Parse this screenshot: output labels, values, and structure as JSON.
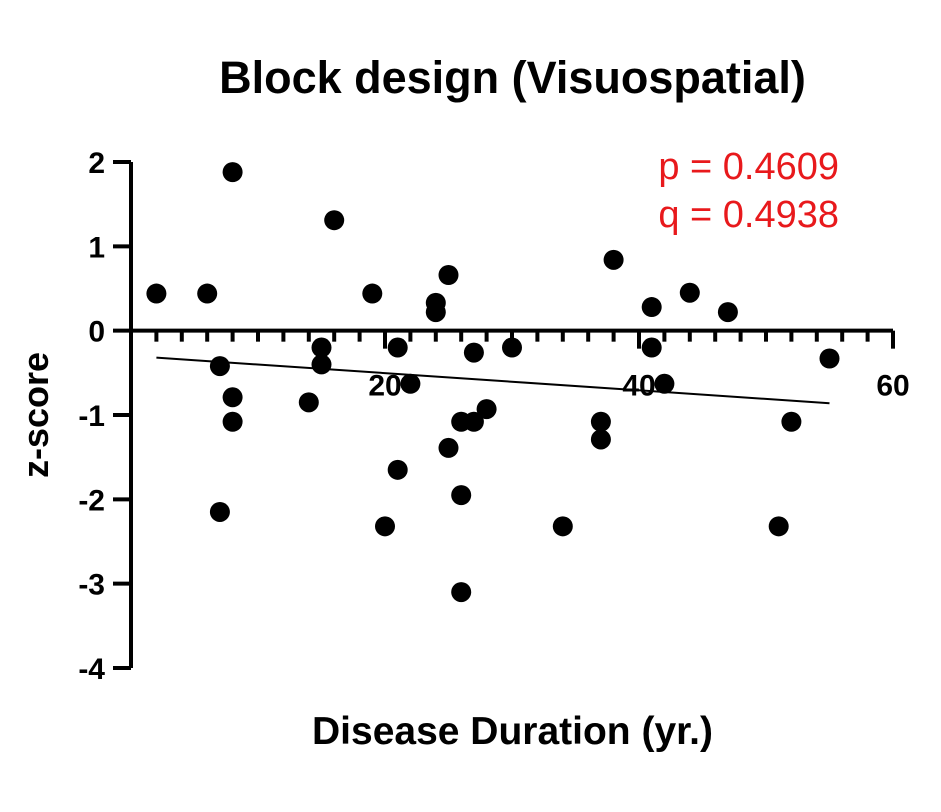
{
  "chart_data": {
    "type": "scatter",
    "title": "Block design (Visuospatial)",
    "xlabel": "Disease Duration (yr.)",
    "ylabel": "z-score",
    "xlim": [
      0,
      60
    ],
    "ylim": [
      -4,
      2
    ],
    "x_ticks": [
      20,
      40,
      60
    ],
    "y_ticks": [
      2,
      1,
      0,
      -1,
      -2,
      -3,
      -4
    ],
    "annotations": [
      "p = 0.4609",
      "q = 0.4938"
    ],
    "annotation_color": "#e8191c",
    "marker_color": "#000000",
    "grid": false,
    "trendline": {
      "x": [
        2,
        55
      ],
      "y": [
        -0.32,
        -0.86
      ]
    },
    "points": [
      {
        "x": 2,
        "y": 0.44
      },
      {
        "x": 6,
        "y": 0.44
      },
      {
        "x": 7,
        "y": -0.42
      },
      {
        "x": 7,
        "y": -2.15
      },
      {
        "x": 8,
        "y": 1.88
      },
      {
        "x": 8,
        "y": -0.79
      },
      {
        "x": 8,
        "y": -1.08
      },
      {
        "x": 15,
        "y": -0.2
      },
      {
        "x": 15,
        "y": -0.4
      },
      {
        "x": 14,
        "y": -0.85
      },
      {
        "x": 16,
        "y": 1.31
      },
      {
        "x": 19,
        "y": 0.44
      },
      {
        "x": 20,
        "y": -2.32
      },
      {
        "x": 21,
        "y": -0.2
      },
      {
        "x": 21,
        "y": -1.65
      },
      {
        "x": 22,
        "y": -0.63
      },
      {
        "x": 24,
        "y": 0.33
      },
      {
        "x": 24,
        "y": 0.22
      },
      {
        "x": 25,
        "y": 0.66
      },
      {
        "x": 25,
        "y": -1.39
      },
      {
        "x": 26,
        "y": -1.08
      },
      {
        "x": 26,
        "y": -1.95
      },
      {
        "x": 26,
        "y": -3.1
      },
      {
        "x": 27,
        "y": -0.26
      },
      {
        "x": 27,
        "y": -1.08
      },
      {
        "x": 28,
        "y": -0.93
      },
      {
        "x": 30,
        "y": -0.2
      },
      {
        "x": 34,
        "y": -2.32
      },
      {
        "x": 37,
        "y": -1.08
      },
      {
        "x": 37,
        "y": -1.29
      },
      {
        "x": 38,
        "y": 0.84
      },
      {
        "x": 41,
        "y": 0.28
      },
      {
        "x": 41,
        "y": -0.2
      },
      {
        "x": 42,
        "y": -0.63
      },
      {
        "x": 44,
        "y": 0.45
      },
      {
        "x": 47,
        "y": 0.22
      },
      {
        "x": 51,
        "y": -2.32
      },
      {
        "x": 52,
        "y": -1.08
      },
      {
        "x": 55,
        "y": -0.33
      }
    ]
  }
}
